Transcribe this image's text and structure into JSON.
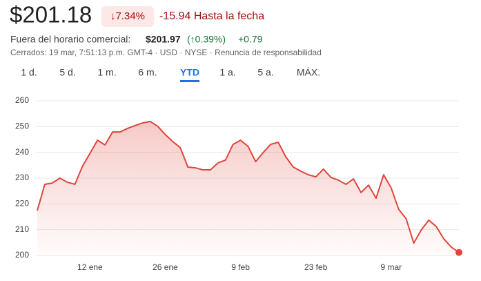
{
  "header": {
    "price": "$201.18",
    "change_badge": "↓7.34%",
    "change_text": "-15.94 Hasta la fecha",
    "after_hours_label": "Fuera del horario comercial:",
    "after_hours_price": "$201.97",
    "after_hours_pct": "(↑0.39%)",
    "after_hours_change": "+0.79",
    "status": "Cerrados: 19 mar, 7:51:13 p.m. GMT-4 · USD · NYSE · Renuncia de responsabilidad"
  },
  "tabs": [
    "1 d.",
    "5 d.",
    "1 m.",
    "6 m.",
    "YTD",
    "1 a.",
    "5 a.",
    "MÁX."
  ],
  "selected_tab": 4,
  "chart_data": {
    "type": "area",
    "color": "#e0443a",
    "grid": true,
    "categories": [
      null,
      null,
      null,
      null,
      null,
      null,
      null,
      "12 ene",
      null,
      null,
      null,
      null,
      null,
      null,
      null,
      null,
      null,
      "26 ene",
      null,
      null,
      null,
      null,
      null,
      null,
      null,
      null,
      null,
      "9 feb",
      null,
      null,
      null,
      null,
      null,
      null,
      null,
      null,
      null,
      "23 feb",
      null,
      null,
      null,
      null,
      null,
      null,
      null,
      null,
      null,
      "9 mar",
      null,
      null,
      null,
      null,
      null,
      null,
      null,
      null,
      null
    ],
    "values": [
      217.4,
      227.6,
      228.1,
      230,
      228.4,
      227.6,
      234.6,
      239.6,
      244.7,
      242.9,
      247.9,
      247.9,
      249.3,
      250.4,
      251.4,
      252,
      250.1,
      246.9,
      244.2,
      241.8,
      234.3,
      234,
      233.2,
      233.2,
      235.9,
      237,
      243.1,
      244.7,
      242.3,
      236.4,
      239.9,
      243.1,
      243.9,
      238.3,
      234.3,
      232.7,
      231.3,
      230.5,
      233.5,
      230.3,
      229.2,
      227.6,
      229.7,
      224.4,
      227.3,
      222.2,
      231.3,
      226.2,
      217.9,
      214.2,
      204.8,
      209.9,
      213.7,
      211.2,
      206.4,
      203.2,
      201.18
    ],
    "ylim": [
      200,
      260
    ],
    "yticks": [
      200,
      210,
      220,
      230,
      240,
      250,
      260
    ]
  }
}
